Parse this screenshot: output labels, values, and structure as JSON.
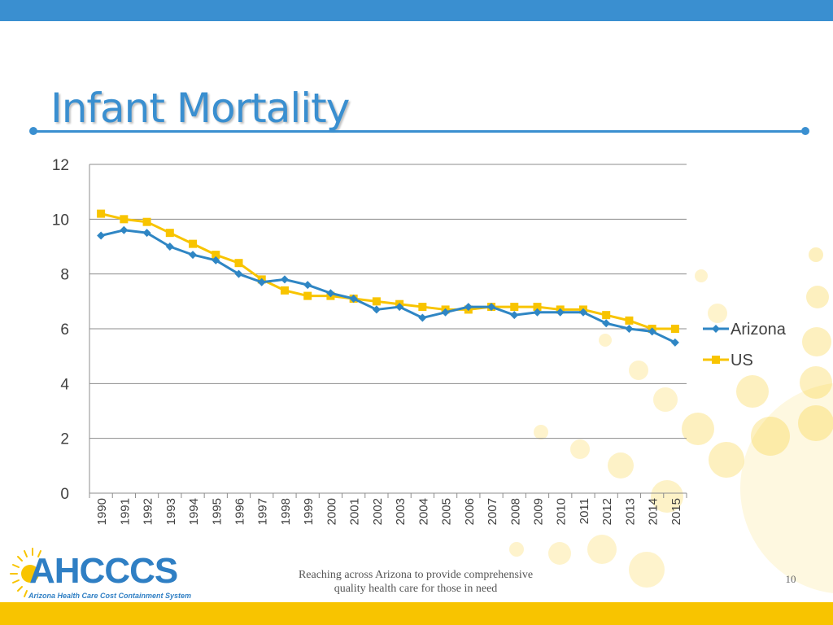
{
  "slide": {
    "title": "Infant Mortality",
    "footer_line1": "Reaching across Arizona to provide comprehensive",
    "footer_line2": "quality health care for those in need",
    "page_number": "10"
  },
  "logo": {
    "name": "AHCCCS",
    "subtitle": "Arizona Health Care Cost Containment System"
  },
  "colors": {
    "accent": "#3a8fd0",
    "arizona": "#2f86c4",
    "us": "#f8c400",
    "gridline": "#8c8c8c"
  },
  "chart_data": {
    "type": "line",
    "title": "",
    "xlabel": "",
    "ylabel": "",
    "ylim": [
      0,
      12
    ],
    "yticks": [
      "0",
      "2",
      "4",
      "6",
      "8",
      "10",
      "12"
    ],
    "grid": true,
    "legend": "right",
    "categories": [
      "1990",
      "1991",
      "1992",
      "1993",
      "1994",
      "1995",
      "1996",
      "1997",
      "1998",
      "1999",
      "2000",
      "2001",
      "2002",
      "2003",
      "2004",
      "2005",
      "2006",
      "2007",
      "2008",
      "2009",
      "2010",
      "2011",
      "2012",
      "2013",
      "2014",
      "2015"
    ],
    "series": [
      {
        "name": "Arizona",
        "marker": "diamond",
        "values": [
          9.4,
          9.6,
          9.5,
          9.0,
          8.7,
          8.5,
          8.0,
          7.7,
          7.8,
          7.6,
          7.3,
          7.1,
          6.7,
          6.8,
          6.4,
          6.6,
          6.8,
          6.8,
          6.5,
          6.6,
          6.6,
          6.6,
          6.2,
          6.0,
          5.9,
          5.5
        ]
      },
      {
        "name": "US",
        "marker": "square",
        "values": [
          10.2,
          10.0,
          9.9,
          9.5,
          9.1,
          8.7,
          8.4,
          7.8,
          7.4,
          7.2,
          7.2,
          7.1,
          7.0,
          6.9,
          6.8,
          6.7,
          6.7,
          6.8,
          6.8,
          6.8,
          6.7,
          6.7,
          6.5,
          6.3,
          6.0,
          6.0
        ]
      }
    ]
  }
}
